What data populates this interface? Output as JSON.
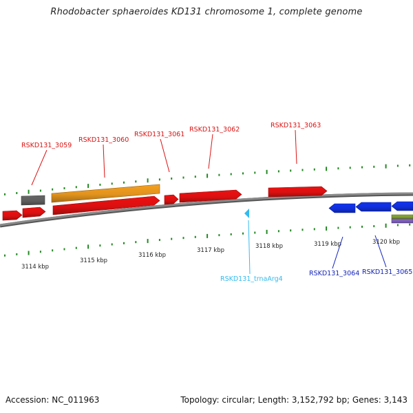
{
  "title": "Rhodobacter sphaeroides KD131 chromosome 1, complete genome",
  "footer": {
    "accession": "Accession: NC_011963",
    "summary": "Topology: circular; Length: 3,152,792 bp; Genes: 3,143"
  },
  "colors": {
    "forward_gene": "#ee1111",
    "reverse_gene": "#1133ee",
    "orange_gene": "#f5a020",
    "gray_gene": "#666666",
    "trna": "#33bbee",
    "green_gene": "#88aa33",
    "purple_gene": "#8866cc",
    "backbone": "#8a8a8a",
    "ticks": "#228822"
  },
  "kbp_labels": [
    "3114 kbp",
    "3115 kbp",
    "3116 kbp",
    "3117 kbp",
    "3118 kbp",
    "3119 kbp",
    "3120 kbp"
  ],
  "gene_labels": {
    "RSKD131_3059": "RSKD131_3059",
    "RSKD131_3060": "RSKD131_3060",
    "RSKD131_3061": "RSKD131_3061",
    "RSKD131_3062": "RSKD131_3062",
    "RSKD131_3063": "RSKD131_3063",
    "RSKD131_trnaArg4": "RSKD131_trnaArg4",
    "RSKD131_3064": "RSKD131_3064",
    "RSKD131_3065": "RSKD131_3065"
  }
}
